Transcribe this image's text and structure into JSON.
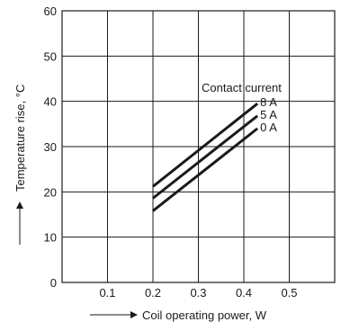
{
  "chart_data": {
    "type": "line",
    "xlabel": "Coil operating power, W",
    "ylabel": "Temperature rise, °C",
    "xlim": [
      0,
      0.6
    ],
    "ylim": [
      0,
      60
    ],
    "x_ticks": [
      0.1,
      0.2,
      0.3,
      0.4,
      0.5
    ],
    "y_ticks": [
      0,
      10,
      20,
      30,
      40,
      50,
      60
    ],
    "grid": true,
    "legend_title": "Contact current",
    "series": [
      {
        "name": "8 A",
        "x": [
          0.2,
          0.43
        ],
        "y": [
          21.2,
          39.5
        ]
      },
      {
        "name": "5 A",
        "x": [
          0.2,
          0.43
        ],
        "y": [
          18.6,
          36.8
        ]
      },
      {
        "name": "0 A",
        "x": [
          0.2,
          0.43
        ],
        "y": [
          15.8,
          34.0
        ]
      }
    ]
  }
}
